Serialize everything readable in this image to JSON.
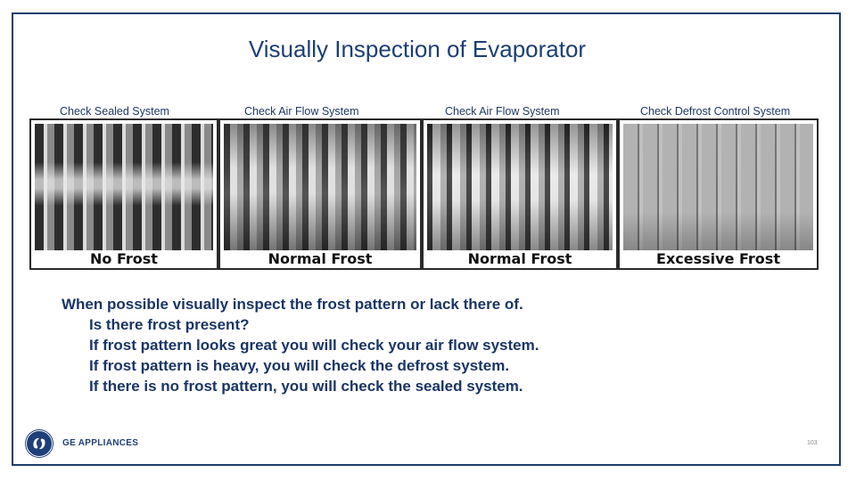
{
  "slide": {
    "title": "Visually Inspection of Evaporator",
    "captions": [
      "Check Sealed System",
      "Check Air Flow System",
      "Check Air Flow System",
      "Check Defrost Control System"
    ],
    "panels": [
      {
        "label": "No Frost"
      },
      {
        "label": "Normal Frost"
      },
      {
        "label": "Normal Frost"
      },
      {
        "label": "Excessive Frost"
      }
    ],
    "body": {
      "lead": "When possible visually inspect the frost pattern or lack there of.",
      "items": [
        "Is there frost present?",
        "If frost pattern looks great you will check your air flow system.",
        "If frost pattern is heavy, you will check the defrost system.",
        "If there is no frost pattern, you will check the sealed system."
      ]
    },
    "footer": {
      "logo_icon": "ge-monogram-icon",
      "brand": "GE APPLIANCES",
      "page_number": "103"
    },
    "colors": {
      "title": "#1c3f74",
      "body_text": "#1a3566",
      "frame": "#1b3f6e",
      "brand": "#1f3f78"
    }
  }
}
